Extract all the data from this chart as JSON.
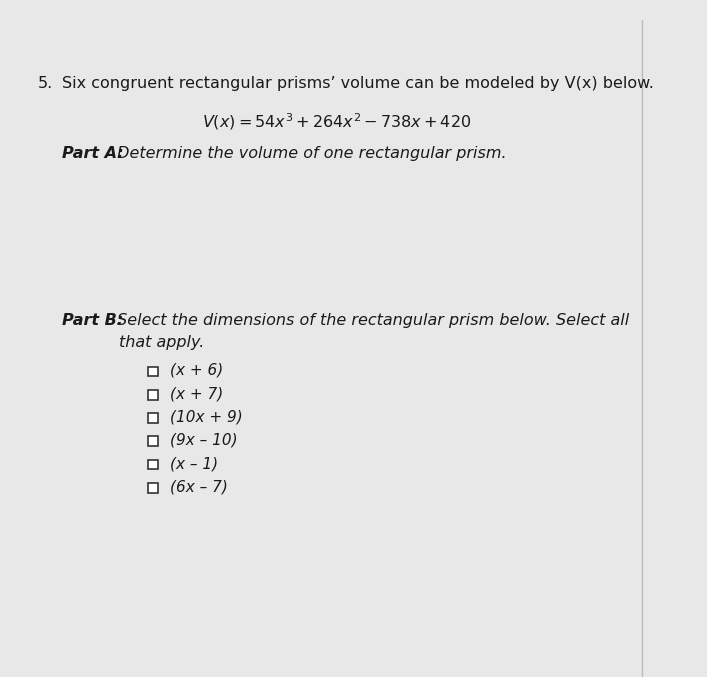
{
  "background_color": "#e8e8e8",
  "page_color": "#ffffff",
  "question_number": "5.",
  "title_text": "  Six congruent rectangular prisms’ volume can be modeled by V(x) below.",
  "formula_parts": "V(x) = 54x³ + 264x² – 738x + 420",
  "part_a_label": "Part A:",
  "part_a_rest": " Determine the volume of one rectangular prism.",
  "part_b_line1_label": "Part B:",
  "part_b_line1_rest": " Select the dimensions of the rectangular prism below. Select all",
  "part_b_line2": "that apply.",
  "options": [
    "(x + 6)",
    "(x + 7)",
    "(10x + 9)",
    "(9x – 10)",
    "(x – 1)",
    "(6x – 7)"
  ],
  "font_size": 11.5,
  "font_size_formula": 11.5,
  "font_size_options": 11.0,
  "border_color": "#bbbbbb",
  "text_color": "#1a1a1a"
}
